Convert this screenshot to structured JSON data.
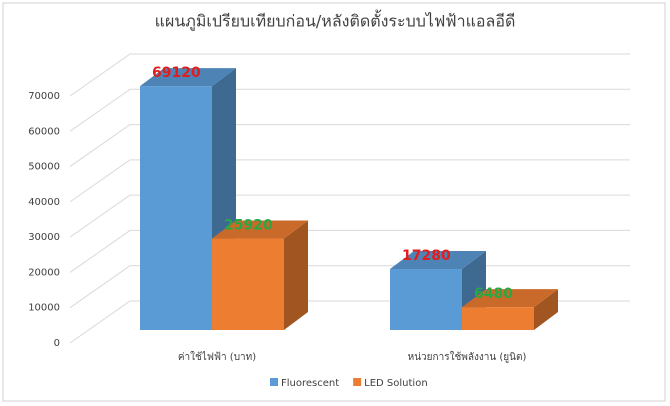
{
  "chart_data": {
    "type": "bar3d",
    "title": "แผนภูมิเปรียบเทียบก่อน/หลังติดตั้งระบบไฟฟ้าแอลอีดี",
    "categories": [
      "ค่าใช้ไฟฟ้า (บาท)",
      "หน่วยการใช้พลังงาน (ยูนิต)"
    ],
    "series": [
      {
        "name": "Fluorescent",
        "color": "#5b9bd5",
        "label_color": "#e41c1c",
        "values": [
          69120,
          17280
        ]
      },
      {
        "name": "LED Solution",
        "color": "#ed7d31",
        "label_color": "#27a844",
        "values": [
          25920,
          6480
        ]
      }
    ],
    "ylim": [
      0,
      70000
    ],
    "yticks": [
      0,
      10000,
      20000,
      30000,
      40000,
      50000,
      60000,
      70000
    ],
    "grid": true,
    "legend": "bottom"
  }
}
